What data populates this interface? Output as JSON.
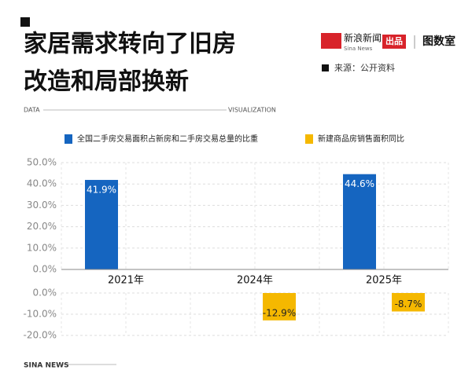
{
  "chart_data": {
    "type": "bar",
    "title_lines": [
      "家居需求转向了旧房",
      "改造和局部换新"
    ],
    "source": "来源：公开资料",
    "categories": [
      "2021年",
      "2024年",
      "2025年"
    ],
    "series": [
      {
        "name": "全国二手房交易面积占新房和二手房交易总量的比重",
        "color": "#1565c0",
        "values": [
          41.9,
          null,
          44.6
        ],
        "value_labels": [
          "41.9%",
          null,
          "44.6%"
        ]
      },
      {
        "name": "新建商品房销售面积同比",
        "color": "#f5b800",
        "axis": "y2",
        "values": [
          null,
          -12.9,
          -8.7
        ],
        "value_labels": [
          null,
          "-12.9%",
          "-8.7%"
        ]
      }
    ],
    "ylim": [
      0,
      50
    ],
    "yticks": [
      {
        "value": 0,
        "label": "0.0%"
      },
      {
        "value": 10,
        "label": "10.0%"
      },
      {
        "value": 20,
        "label": "20.0%"
      },
      {
        "value": 30,
        "label": "30.0%"
      },
      {
        "value": 40,
        "label": "40.0%"
      },
      {
        "value": 50,
        "label": "50.0%"
      }
    ],
    "y2lim": [
      -20,
      0
    ],
    "y2ticks": [
      {
        "value": 0,
        "label": "0.0%"
      },
      {
        "value": -10,
        "label": "-10.0%"
      },
      {
        "value": -20,
        "label": "-20.0%"
      }
    ],
    "grid": true
  },
  "branding": {
    "top_left": "DATA",
    "top_right": "VISUALIZATION",
    "logo_text": "新浪新闻",
    "logo_sub": "Sina News",
    "badge": "出品",
    "studio": "图数室",
    "footer": "SINA NEWS"
  }
}
